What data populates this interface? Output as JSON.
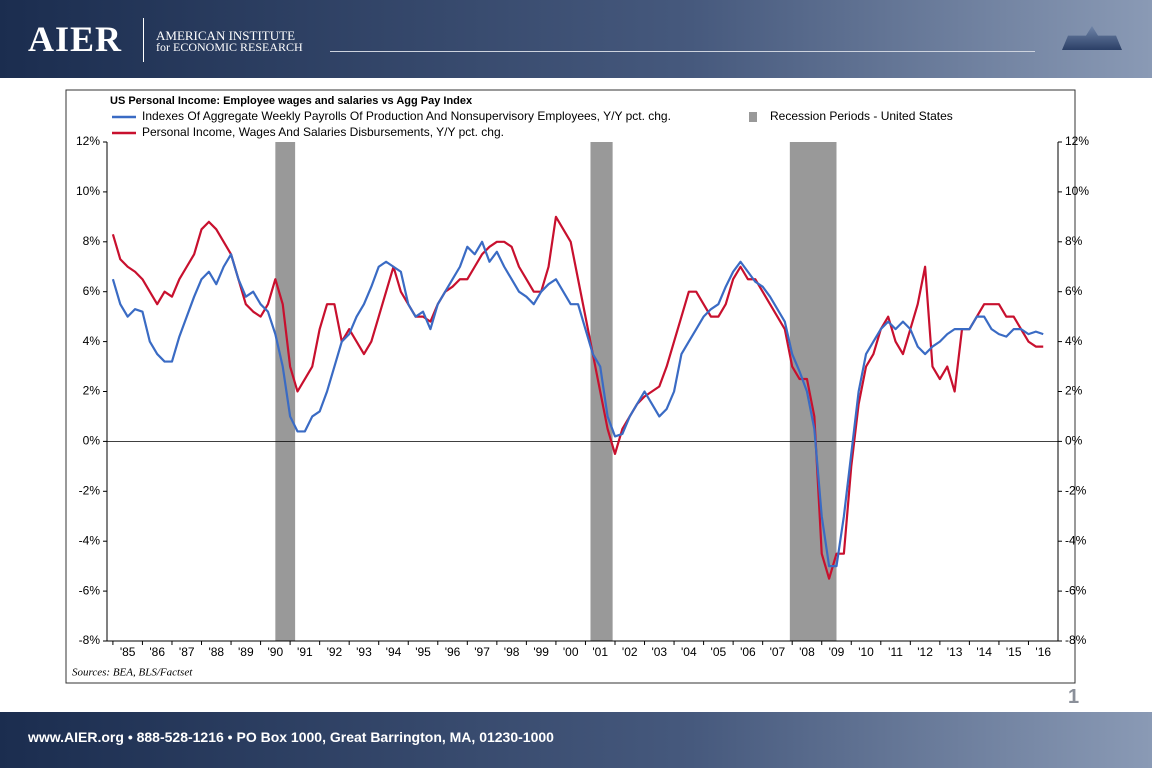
{
  "header": {
    "logo": "AIER",
    "institute": "AMERICAN INSTITUTE",
    "institute_sub": "for ECONOMIC RESEARCH"
  },
  "footer": "www.AIER.org • 888-528-1216 • PO Box 1000, Great Barrington, MA, 01230-1000",
  "page_number": "1",
  "chart_data": {
    "type": "line",
    "title": "US Personal Income: Employee wages and salaries vs Agg Pay Index",
    "source": "Sources: BEA, BLS/Factset",
    "x": [
      1985,
      1985.25,
      1985.5,
      1985.75,
      1986,
      1986.25,
      1986.5,
      1986.75,
      1987,
      1987.25,
      1987.5,
      1987.75,
      1988,
      1988.25,
      1988.5,
      1988.75,
      1989,
      1989.25,
      1989.5,
      1989.75,
      1990,
      1990.25,
      1990.5,
      1990.75,
      1991,
      1991.25,
      1991.5,
      1991.75,
      1992,
      1992.25,
      1992.5,
      1992.75,
      1993,
      1993.25,
      1993.5,
      1993.75,
      1994,
      1994.25,
      1994.5,
      1994.75,
      1995,
      1995.25,
      1995.5,
      1995.75,
      1996,
      1996.25,
      1996.5,
      1996.75,
      1997,
      1997.25,
      1997.5,
      1997.75,
      1998,
      1998.25,
      1998.5,
      1998.75,
      1999,
      1999.25,
      1999.5,
      1999.75,
      2000,
      2000.25,
      2000.5,
      2000.75,
      2001,
      2001.25,
      2001.5,
      2001.75,
      2002,
      2002.25,
      2002.5,
      2002.75,
      2003,
      2003.25,
      2003.5,
      2003.75,
      2004,
      2004.25,
      2004.5,
      2004.75,
      2005,
      2005.25,
      2005.5,
      2005.75,
      2006,
      2006.25,
      2006.5,
      2006.75,
      2007,
      2007.25,
      2007.5,
      2007.75,
      2008,
      2008.25,
      2008.5,
      2008.75,
      2009,
      2009.25,
      2009.5,
      2009.75,
      2010,
      2010.25,
      2010.5,
      2010.75,
      2011,
      2011.25,
      2011.5,
      2011.75,
      2012,
      2012.25,
      2012.5,
      2012.75,
      2013,
      2013.25,
      2013.5,
      2013.75,
      2014,
      2014.25,
      2014.5,
      2014.75,
      2015,
      2015.25,
      2015.5,
      2015.75,
      2016,
      2016.25,
      2016.5
    ],
    "series": [
      {
        "name": "Indexes Of Aggregate Weekly Payrolls Of Production And Nonsupervisory Employees, Y/Y pct. chg.",
        "color": "#3a6bc4",
        "values": [
          6.5,
          5.5,
          5.0,
          5.3,
          5.2,
          4.0,
          3.5,
          3.2,
          3.2,
          4.2,
          5.0,
          5.8,
          6.5,
          6.8,
          6.3,
          7.0,
          7.5,
          6.5,
          5.8,
          6.0,
          5.5,
          5.2,
          4.3,
          3.0,
          1.0,
          0.4,
          0.4,
          1.0,
          1.2,
          2.0,
          3.0,
          4.0,
          4.3,
          5.0,
          5.5,
          6.2,
          7.0,
          7.2,
          7.0,
          6.8,
          5.5,
          5.0,
          5.2,
          4.5,
          5.5,
          6.0,
          6.5,
          7.0,
          7.8,
          7.5,
          8.0,
          7.2,
          7.6,
          7.0,
          6.5,
          6.0,
          5.8,
          5.5,
          6.0,
          6.3,
          6.5,
          6.0,
          5.5,
          5.5,
          4.5,
          3.5,
          3.0,
          1.0,
          0.2,
          0.3,
          1.0,
          1.5,
          2.0,
          1.5,
          1.0,
          1.3,
          2.0,
          3.5,
          4.0,
          4.5,
          5.0,
          5.3,
          5.5,
          6.2,
          6.8,
          7.2,
          6.8,
          6.4,
          6.2,
          5.8,
          5.3,
          4.8,
          3.5,
          2.8,
          2.0,
          0.5,
          -3.0,
          -5.0,
          -5.0,
          -3.0,
          -0.5,
          2.0,
          3.5,
          4.0,
          4.5,
          4.8,
          4.5,
          4.8,
          4.5,
          3.8,
          3.5,
          3.8,
          4.0,
          4.3,
          4.5,
          4.5,
          4.5,
          5.0,
          5.0,
          4.5,
          4.3,
          4.2,
          4.5,
          4.5,
          4.3,
          4.4,
          4.3
        ]
      },
      {
        "name": "Personal Income, Wages And Salaries Disbursements, Y/Y pct. chg.",
        "color": "#c8102e",
        "values": [
          8.3,
          7.3,
          7.0,
          6.8,
          6.5,
          6.0,
          5.5,
          6.0,
          5.8,
          6.5,
          7.0,
          7.5,
          8.5,
          8.8,
          8.5,
          8.0,
          7.5,
          6.5,
          5.5,
          5.2,
          5.0,
          5.5,
          6.5,
          5.5,
          3.0,
          2.0,
          2.5,
          3.0,
          4.5,
          5.5,
          5.5,
          4.0,
          4.5,
          4.0,
          3.5,
          4.0,
          5.0,
          6.0,
          7.0,
          6.0,
          5.5,
          5.0,
          5.0,
          4.8,
          5.5,
          6.0,
          6.2,
          6.5,
          6.5,
          7.0,
          7.5,
          7.8,
          8.0,
          8.0,
          7.8,
          7.0,
          6.5,
          6.0,
          6.0,
          7.0,
          9.0,
          8.5,
          8.0,
          6.5,
          5.0,
          3.5,
          2.0,
          0.5,
          -0.5,
          0.5,
          1.0,
          1.5,
          1.8,
          2.0,
          2.2,
          3.0,
          4.0,
          5.0,
          6.0,
          6.0,
          5.5,
          5.0,
          5.0,
          5.5,
          6.5,
          7.0,
          6.5,
          6.5,
          6.0,
          5.5,
          5.0,
          4.5,
          3.0,
          2.5,
          2.5,
          1.0,
          -4.5,
          -5.5,
          -4.5,
          -4.5,
          -1.0,
          1.5,
          3.0,
          3.5,
          4.5,
          5.0,
          4.0,
          3.5,
          4.5,
          5.5,
          7.0,
          3.0,
          2.5,
          3.0,
          2.0,
          4.5,
          4.5,
          5.0,
          5.5,
          5.5,
          5.5,
          5.0,
          5.0,
          4.5,
          4.0,
          3.8,
          3.8
        ]
      }
    ],
    "recessions": {
      "name": "Recession Periods - United States",
      "color": "#999999",
      "periods": [
        [
          1990.5,
          1991.17
        ],
        [
          2001.17,
          2001.92
        ],
        [
          2007.92,
          2009.5
        ]
      ]
    },
    "xlim": [
      1984.8,
      2017.0
    ],
    "xticks": [
      {
        "value": 1985,
        "label": "'85"
      },
      {
        "value": 1986,
        "label": "'86"
      },
      {
        "value": 1987,
        "label": "'87"
      },
      {
        "value": 1988,
        "label": "'88"
      },
      {
        "value": 1989,
        "label": "'89"
      },
      {
        "value": 1990,
        "label": "'90"
      },
      {
        "value": 1991,
        "label": "'91"
      },
      {
        "value": 1992,
        "label": "'92"
      },
      {
        "value": 1993,
        "label": "'93"
      },
      {
        "value": 1994,
        "label": "'94"
      },
      {
        "value": 1995,
        "label": "'95"
      },
      {
        "value": 1996,
        "label": "'96"
      },
      {
        "value": 1997,
        "label": "'97"
      },
      {
        "value": 1998,
        "label": "'98"
      },
      {
        "value": 1999,
        "label": "'99"
      },
      {
        "value": 2000,
        "label": "'00"
      },
      {
        "value": 2001,
        "label": "'01"
      },
      {
        "value": 2002,
        "label": "'02"
      },
      {
        "value": 2003,
        "label": "'03"
      },
      {
        "value": 2004,
        "label": "'04"
      },
      {
        "value": 2005,
        "label": "'05"
      },
      {
        "value": 2006,
        "label": "'06"
      },
      {
        "value": 2007,
        "label": "'07"
      },
      {
        "value": 2008,
        "label": "'08"
      },
      {
        "value": 2009,
        "label": "'09"
      },
      {
        "value": 2010,
        "label": "'10"
      },
      {
        "value": 2011,
        "label": "'11"
      },
      {
        "value": 2012,
        "label": "'12"
      },
      {
        "value": 2013,
        "label": "'13"
      },
      {
        "value": 2014,
        "label": "'14"
      },
      {
        "value": 2015,
        "label": "'15"
      },
      {
        "value": 2016,
        "label": "'16"
      }
    ],
    "ylim": [
      -8,
      12
    ],
    "yticks": [
      {
        "value": -8,
        "label": "-8%"
      },
      {
        "value": -6,
        "label": "-6%"
      },
      {
        "value": -4,
        "label": "-4%"
      },
      {
        "value": -2,
        "label": "-2%"
      },
      {
        "value": 0,
        "label": "0%"
      },
      {
        "value": 2,
        "label": "2%"
      },
      {
        "value": 4,
        "label": "4%"
      },
      {
        "value": 6,
        "label": "6%"
      },
      {
        "value": 8,
        "label": "8%"
      },
      {
        "value": 10,
        "label": "10%"
      },
      {
        "value": 12,
        "label": "12%"
      }
    ],
    "y2lim": [
      -8,
      12
    ],
    "y2ticks": [
      {
        "value": -8,
        "label": "-8%"
      },
      {
        "value": -6,
        "label": "-6%"
      },
      {
        "value": -4,
        "label": "-4%"
      },
      {
        "value": -2,
        "label": "-2%"
      },
      {
        "value": 0,
        "label": "0%"
      },
      {
        "value": 2,
        "label": "2%"
      },
      {
        "value": 4,
        "label": "4%"
      },
      {
        "value": 6,
        "label": "6%"
      },
      {
        "value": 8,
        "label": "8%"
      },
      {
        "value": 10,
        "label": "10%"
      },
      {
        "value": 12,
        "label": "12%"
      }
    ],
    "grid": false
  }
}
